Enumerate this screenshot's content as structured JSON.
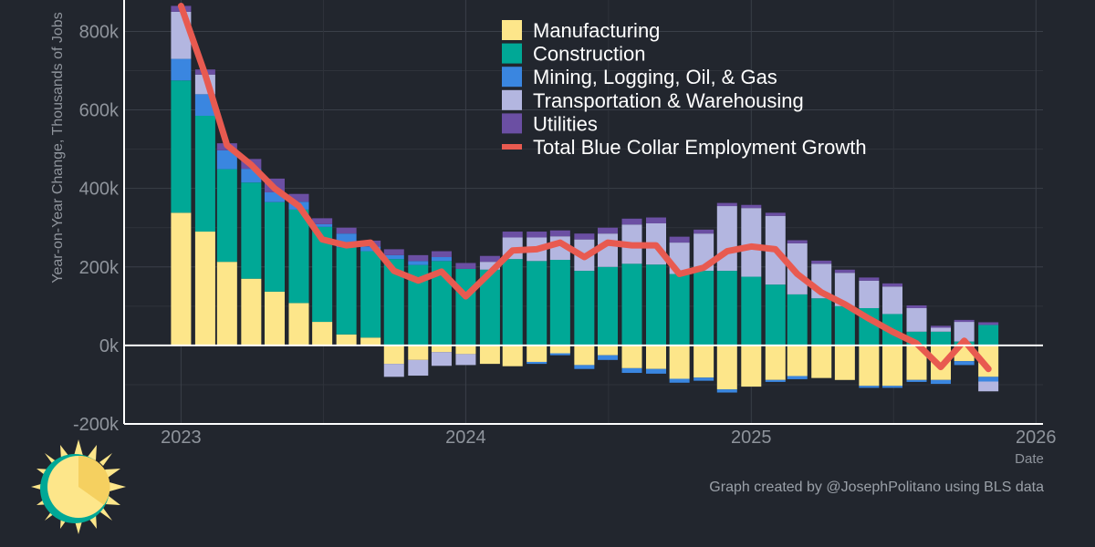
{
  "chart_data": {
    "type": "bar",
    "stacked": true,
    "ylabel": "Year-on-Year Change, Thousands of Jobs",
    "xlabel": "Date",
    "ylim": [
      -200,
      880
    ],
    "yticks": [
      -200,
      0,
      200,
      400,
      600,
      800
    ],
    "ytick_labels": [
      "-200k",
      "0k",
      "200k",
      "400k",
      "600k",
      "800k"
    ],
    "xlim": [
      "2022-10-20",
      "2026-01-10"
    ],
    "xticks": [
      "2023-01-01",
      "2024-01-01",
      "2025-01-01",
      "2026-01-01"
    ],
    "xtick_labels": [
      "2023",
      "2024",
      "2025",
      "2026"
    ],
    "grid": true,
    "legend_position": "top-center",
    "x": [
      "2023-01",
      "2023-02",
      "2023-03",
      "2023-04",
      "2023-05",
      "2023-06",
      "2023-07",
      "2023-08",
      "2023-09",
      "2023-10",
      "2023-11",
      "2023-12",
      "2024-01",
      "2024-02",
      "2024-03",
      "2024-04",
      "2024-05",
      "2024-06",
      "2024-07",
      "2024-08",
      "2024-09",
      "2024-10",
      "2024-11",
      "2024-12",
      "2025-01",
      "2025-02",
      "2025-03",
      "2025-04",
      "2025-05",
      "2025-06",
      "2025-07",
      "2025-08",
      "2025-09",
      "2025-10",
      "2025-11"
    ],
    "series": [
      {
        "name": "Manufacturing",
        "color": "#fde68a",
        "values": [
          338,
          290,
          213,
          170,
          137,
          108,
          60,
          28,
          20,
          -47,
          -37,
          -17,
          -22,
          -47,
          -53,
          -42,
          -20,
          -50,
          -25,
          -58,
          -60,
          -85,
          -82,
          -112,
          -105,
          -88,
          -78,
          -83,
          -88,
          -103,
          -103,
          -88,
          -88,
          -40,
          -80
        ]
      },
      {
        "name": "Construction",
        "color": "#00a896",
        "values": [
          337,
          295,
          236,
          245,
          228,
          238,
          242,
          222,
          220,
          220,
          205,
          215,
          195,
          193,
          220,
          215,
          218,
          190,
          200,
          208,
          206,
          182,
          190,
          190,
          175,
          155,
          130,
          120,
          100,
          95,
          80,
          35,
          35,
          10,
          52
        ]
      },
      {
        "name": "Mining, Logging, Oil, & Gas",
        "color": "#3a86e0",
        "values": [
          55,
          55,
          48,
          35,
          25,
          20,
          7,
          35,
          12,
          10,
          10,
          10,
          0,
          0,
          0,
          -5,
          -5,
          -10,
          -12,
          -12,
          -12,
          -10,
          -8,
          -8,
          0,
          -5,
          -8,
          0,
          0,
          -5,
          -5,
          -5,
          -10,
          -10,
          -12
        ]
      },
      {
        "name": "Transportation & Warehousing",
        "color": "#b3b6e0",
        "values": [
          120,
          50,
          0,
          0,
          0,
          0,
          0,
          0,
          0,
          -33,
          -40,
          -35,
          -28,
          20,
          55,
          60,
          60,
          80,
          85,
          100,
          105,
          80,
          95,
          165,
          175,
          175,
          130,
          88,
          85,
          70,
          70,
          60,
          10,
          50,
          -25
        ]
      },
      {
        "name": "Utilities",
        "color": "#6b4fa3",
        "values": [
          15,
          13,
          18,
          25,
          35,
          20,
          15,
          15,
          15,
          15,
          15,
          15,
          15,
          15,
          15,
          15,
          15,
          15,
          15,
          15,
          15,
          15,
          10,
          8,
          8,
          8,
          8,
          8,
          8,
          8,
          8,
          7,
          5,
          5,
          7
        ]
      }
    ],
    "lines": [
      {
        "name": "Total Blue Collar Employment Growth",
        "color": "#e85a50",
        "values": [
          865,
          690,
          510,
          460,
          400,
          355,
          270,
          255,
          262,
          190,
          165,
          188,
          125,
          185,
          242,
          245,
          262,
          225,
          262,
          255,
          255,
          182,
          198,
          240,
          252,
          245,
          182,
          135,
          105,
          68,
          35,
          5,
          -55,
          12,
          -60
        ]
      }
    ]
  },
  "footer": {
    "credit": "Graph created by @JosephPolitano using BLS data"
  },
  "logo": {
    "icon": "sun-logo-icon"
  }
}
